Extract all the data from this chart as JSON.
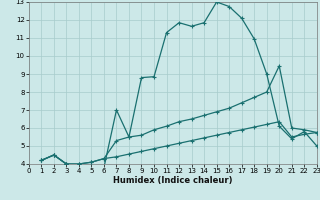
{
  "xlabel": "Humidex (Indice chaleur)",
  "xlim": [
    0,
    23
  ],
  "ylim": [
    4,
    13
  ],
  "yticks": [
    4,
    5,
    6,
    7,
    8,
    9,
    10,
    11,
    12,
    13
  ],
  "xticks": [
    0,
    1,
    2,
    3,
    4,
    5,
    6,
    7,
    8,
    9,
    10,
    11,
    12,
    13,
    14,
    15,
    16,
    17,
    18,
    19,
    20,
    21,
    22,
    23
  ],
  "bg_color": "#cce8e8",
  "line_color": "#1a7070",
  "grid_color": "#a8cccc",
  "line1_x": [
    1,
    2,
    3,
    4,
    5,
    6,
    7,
    8,
    9,
    10,
    11,
    12,
    13,
    14,
    15,
    16,
    17,
    18,
    19,
    20,
    21,
    22,
    23
  ],
  "line1_y": [
    4.2,
    4.5,
    4.0,
    3.9,
    3.7,
    3.8,
    7.0,
    5.5,
    8.8,
    8.85,
    11.3,
    11.85,
    11.65,
    11.85,
    13.0,
    12.75,
    12.1,
    10.95,
    9.0,
    6.1,
    5.4,
    5.8,
    5.0
  ],
  "line2_x": [
    1,
    2,
    3,
    4,
    5,
    6,
    7,
    8,
    9,
    10,
    11,
    12,
    13,
    14,
    15,
    16,
    17,
    18,
    19,
    20,
    21,
    22,
    23
  ],
  "line2_y": [
    4.2,
    4.5,
    4.0,
    4.0,
    4.1,
    4.3,
    5.3,
    5.5,
    5.6,
    5.9,
    6.1,
    6.35,
    6.5,
    6.7,
    6.9,
    7.1,
    7.4,
    7.7,
    8.0,
    9.45,
    6.0,
    5.9,
    5.75
  ],
  "line3_x": [
    1,
    2,
    3,
    4,
    5,
    6,
    7,
    8,
    9,
    10,
    11,
    12,
    13,
    14,
    15,
    16,
    17,
    18,
    19,
    20,
    21,
    22,
    23
  ],
  "line3_y": [
    4.2,
    4.5,
    4.0,
    4.0,
    4.1,
    4.3,
    4.4,
    4.55,
    4.7,
    4.85,
    5.0,
    5.15,
    5.3,
    5.45,
    5.6,
    5.75,
    5.9,
    6.05,
    6.2,
    6.35,
    5.5,
    5.65,
    5.75
  ]
}
